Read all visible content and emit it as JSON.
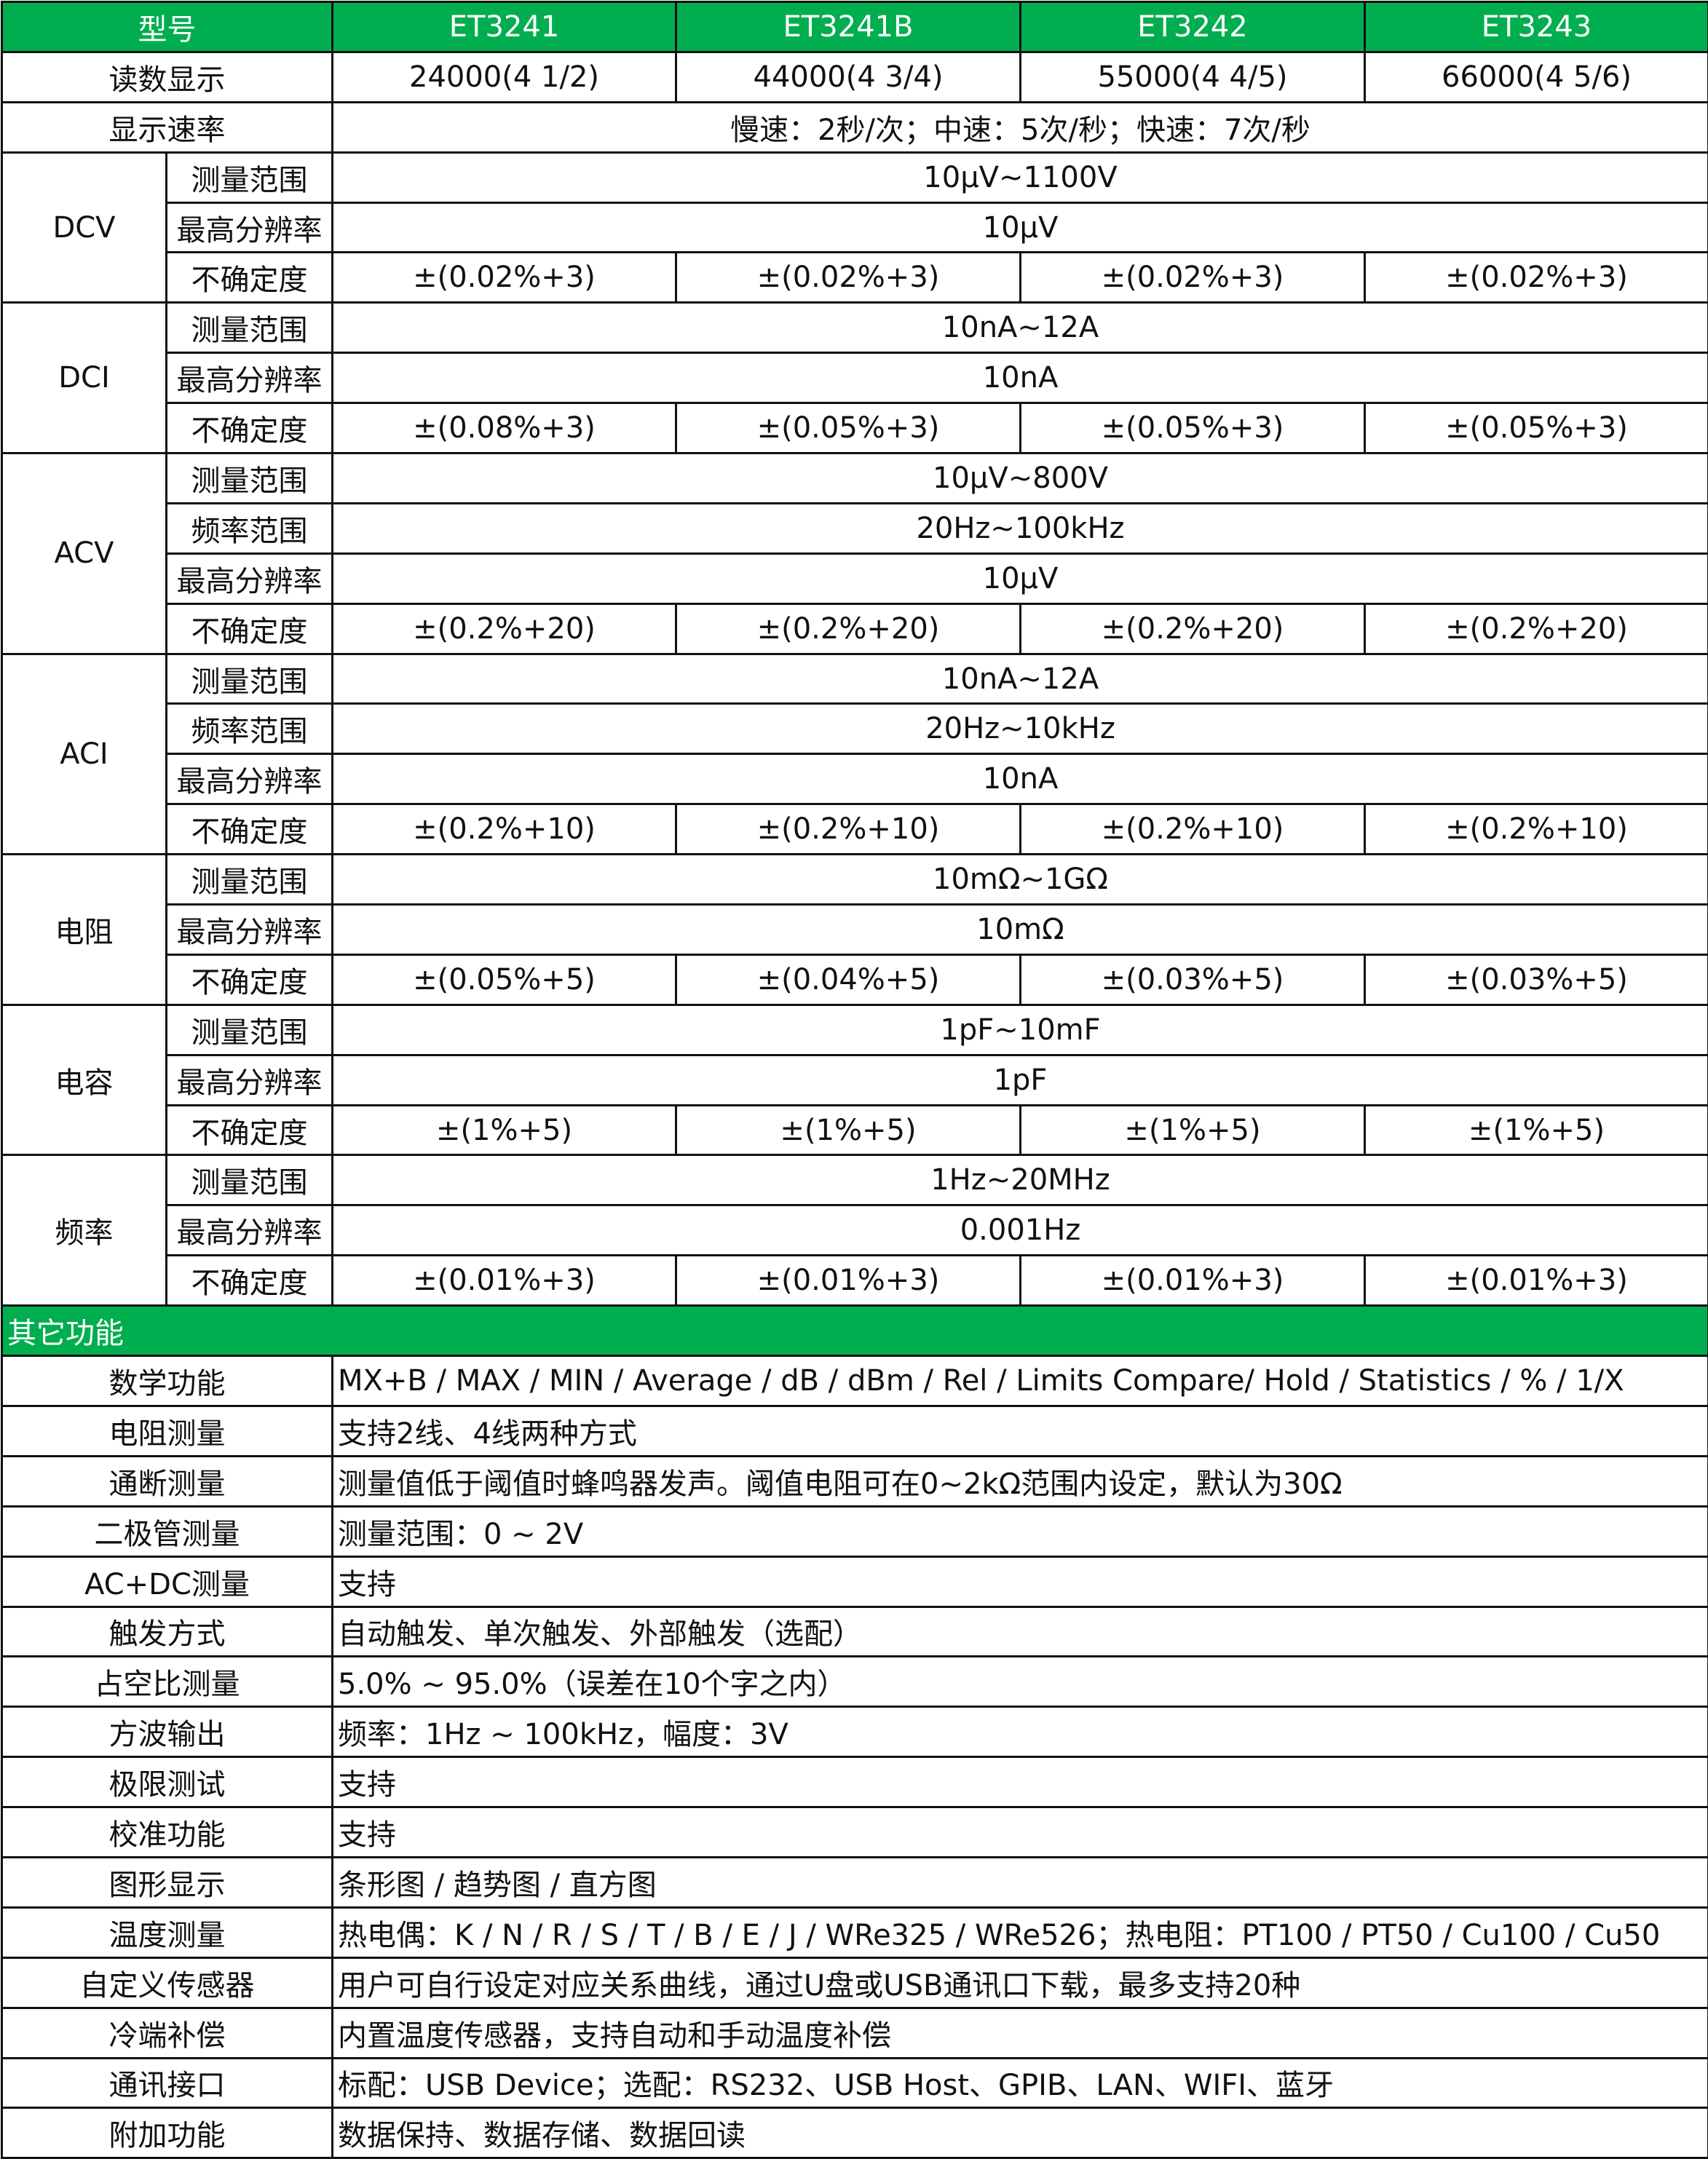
{
  "header": {
    "label": "型号",
    "models": [
      "ET3241",
      "ET3241B",
      "ET3242",
      "ET3243"
    ]
  },
  "top_rows": [
    {
      "label": "读数显示",
      "values": [
        "24000(4 1/2)",
        "44000(4 3/4)",
        "55000(4 4/5)",
        "66000(4 5/6)"
      ]
    },
    {
      "label": "显示速率",
      "values": [
        "慢速：2秒/次；中速：5次/秒；快速：7次/秒"
      ]
    }
  ],
  "groups": [
    {
      "name": "DCV",
      "rows": [
        {
          "label": "测量范围",
          "values": [
            "10μV~1100V"
          ]
        },
        {
          "label": "最高分辨率",
          "values": [
            "10μV"
          ]
        },
        {
          "label": "不确定度",
          "values": [
            "±(0.02%+3)",
            "±(0.02%+3)",
            "±(0.02%+3)",
            "±(0.02%+3)"
          ]
        }
      ]
    },
    {
      "name": "DCI",
      "rows": [
        {
          "label": "测量范围",
          "values": [
            "10nA~12A"
          ]
        },
        {
          "label": "最高分辨率",
          "values": [
            "10nA"
          ]
        },
        {
          "label": "不确定度",
          "values": [
            "±(0.08%+3)",
            "±(0.05%+3)",
            "±(0.05%+3)",
            "±(0.05%+3)"
          ]
        }
      ]
    },
    {
      "name": "ACV",
      "rows": [
        {
          "label": "测量范围",
          "values": [
            "10μV~800V"
          ]
        },
        {
          "label": "频率范围",
          "values": [
            "20Hz~100kHz"
          ]
        },
        {
          "label": "最高分辨率",
          "values": [
            "10μV"
          ]
        },
        {
          "label": "不确定度",
          "values": [
            "±(0.2%+20)",
            "±(0.2%+20)",
            "±(0.2%+20)",
            "±(0.2%+20)"
          ]
        }
      ]
    },
    {
      "name": "ACI",
      "rows": [
        {
          "label": "测量范围",
          "values": [
            "10nA~12A"
          ]
        },
        {
          "label": "频率范围",
          "values": [
            "20Hz~10kHz"
          ]
        },
        {
          "label": "最高分辨率",
          "values": [
            "10nA"
          ]
        },
        {
          "label": "不确定度",
          "values": [
            "±(0.2%+10)",
            "±(0.2%+10)",
            "±(0.2%+10)",
            "±(0.2%+10)"
          ]
        }
      ]
    },
    {
      "name": "电阻",
      "rows": [
        {
          "label": "测量范围",
          "values": [
            "10mΩ~1GΩ"
          ]
        },
        {
          "label": "最高分辨率",
          "values": [
            "10mΩ"
          ]
        },
        {
          "label": "不确定度",
          "values": [
            "±(0.05%+5)",
            "±(0.04%+5)",
            "±(0.03%+5)",
            "±(0.03%+5)"
          ]
        }
      ]
    },
    {
      "name": "电容",
      "rows": [
        {
          "label": "测量范围",
          "values": [
            "1pF~10mF"
          ]
        },
        {
          "label": "最高分辨率",
          "values": [
            "1pF"
          ]
        },
        {
          "label": "不确定度",
          "values": [
            "±(1%+5)",
            "±(1%+5)",
            "±(1%+5)",
            "±(1%+5)"
          ]
        }
      ]
    },
    {
      "name": "频率",
      "rows": [
        {
          "label": "测量范围",
          "values": [
            "1Hz~20MHz"
          ]
        },
        {
          "label": "最高分辨率",
          "values": [
            "0.001Hz"
          ]
        },
        {
          "label": "不确定度",
          "values": [
            "±(0.01%+3)",
            "±(0.01%+3)",
            "±(0.01%+3)",
            "±(0.01%+3)"
          ]
        }
      ]
    }
  ],
  "other": {
    "title": "其它功能",
    "rows": [
      {
        "label": "数学功能",
        "value": "MX+B / MAX / MIN / Average / dB / dBm / Rel / Limits Compare/ Hold / Statistics / % / 1/X"
      },
      {
        "label": "电阻测量",
        "value": "支持2线、4线两种方式"
      },
      {
        "label": "通断测量",
        "value": "测量值低于阈值时蜂鸣器发声。阈值电阻可在0~2kΩ范围内设定，默认为30Ω"
      },
      {
        "label": "二极管测量",
        "value": "测量范围：0 ~ 2V"
      },
      {
        "label": "AC+DC测量",
        "value": "支持"
      },
      {
        "label": "触发方式",
        "value": "自动触发、单次触发、外部触发（选配）"
      },
      {
        "label": "占空比测量",
        "value": "5.0% ~ 95.0%（误差在10个字之内）"
      },
      {
        "label": "方波输出",
        "value": "频率：1Hz ~ 100kHz，幅度：3V"
      },
      {
        "label": "极限测试",
        "value": "支持"
      },
      {
        "label": "校准功能",
        "value": "支持"
      },
      {
        "label": "图形显示",
        "value": "条形图 / 趋势图 / 直方图"
      },
      {
        "label": "温度测量",
        "value": "热电偶：K / N / R / S / T / B / E / J / WRe325 / WRe526；热电阻：PT100 / PT50 / Cu100 / Cu50"
      },
      {
        "label": "自定义传感器",
        "value": "用户可自行设定对应关系曲线，通过U盘或USB通讯口下载，最多支持20种"
      },
      {
        "label": "冷端补偿",
        "value": "内置温度传感器，支持自动和手动温度补偿"
      },
      {
        "label": "通讯接口",
        "value": "标配：USB Device；选配：RS232、USB Host、GPIB、LAN、WIFI、蓝牙"
      },
      {
        "label": "附加功能",
        "value": "数据保持、数据存储、数据回读"
      }
    ]
  },
  "colors": {
    "header_bg": "#00AE4F",
    "header_text": "#ffffff",
    "border": "#111111"
  }
}
